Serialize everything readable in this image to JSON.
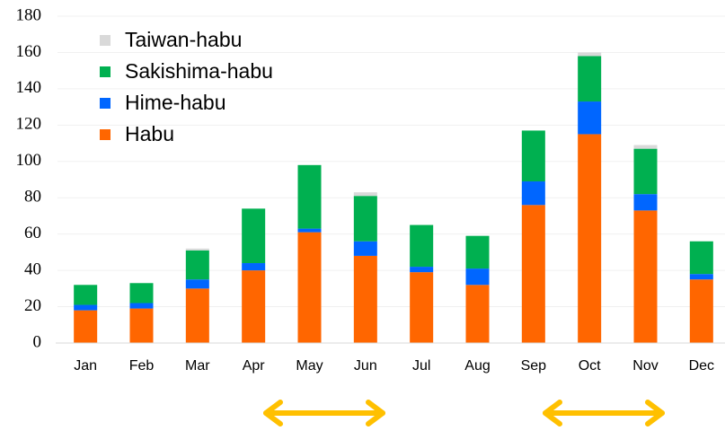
{
  "chart_data": {
    "type": "stacked_bar",
    "categories": [
      "Jan",
      "Feb",
      "Mar",
      "Apr",
      "May",
      "Jun",
      "Jul",
      "Aug",
      "Sep",
      "Oct",
      "Nov",
      "Dec"
    ],
    "series": [
      {
        "name": "Habu",
        "color": "#ff6600",
        "values": [
          18,
          19,
          30,
          40,
          61,
          48,
          39,
          32,
          76,
          115,
          73,
          35
        ]
      },
      {
        "name": "Hime-habu",
        "color": "#0066ff",
        "values": [
          3,
          3,
          5,
          4,
          2,
          8,
          3,
          9,
          13,
          18,
          9,
          3
        ]
      },
      {
        "name": "Sakishima-habu",
        "color": "#00b050",
        "values": [
          11,
          11,
          16,
          30,
          35,
          25,
          23,
          18,
          28,
          25,
          25,
          18
        ]
      },
      {
        "name": "Taiwan-habu",
        "color": "#d9d9d9",
        "values": [
          0,
          0,
          1,
          0,
          0,
          2,
          0,
          0,
          0,
          2,
          2,
          0
        ]
      }
    ],
    "ylim": [
      0,
      180
    ],
    "yticks": [
      0,
      20,
      40,
      60,
      80,
      100,
      120,
      140,
      160,
      180
    ],
    "grid": true
  }
}
